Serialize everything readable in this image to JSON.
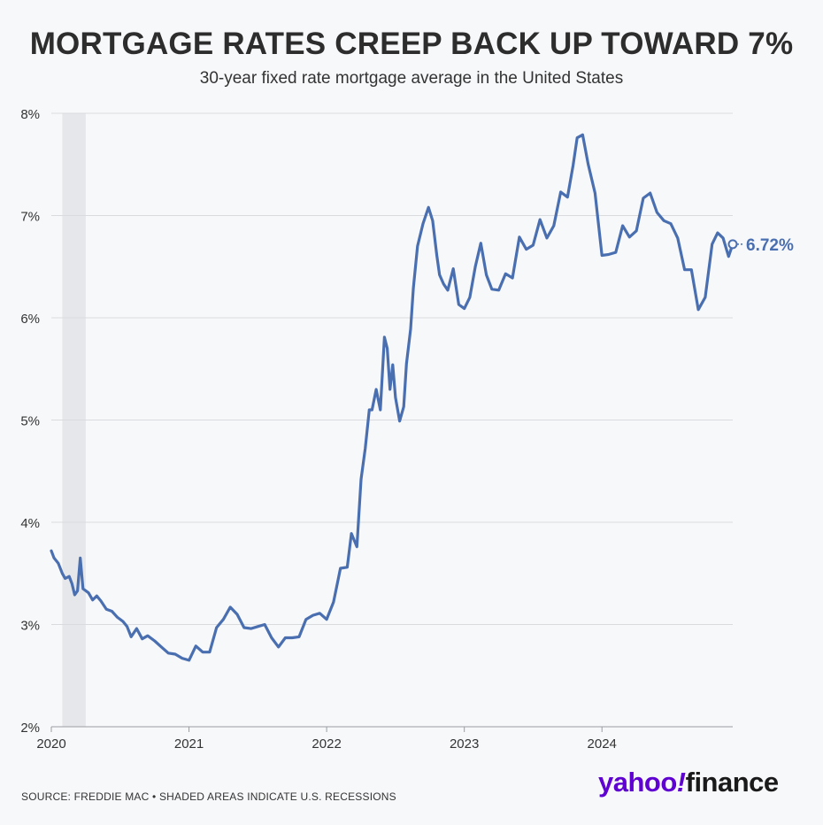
{
  "header": {
    "title": "MORTGAGE RATES CREEP BACK UP TOWARD 7%",
    "subtitle": "30-year fixed rate mortgage average in the United States"
  },
  "footer": {
    "source": "SOURCE: FREDDIE MAC • SHADED AREAS INDICATE U.S. RECESSIONS",
    "brand_yahoo": "yahoo",
    "brand_bang": "!",
    "brand_finance": "finance"
  },
  "colors": {
    "line": "#4a6fb0",
    "recession": "#e6e7ea",
    "grid": "#d9dbdf",
    "brand": "#5f01d1"
  },
  "chart_data": {
    "type": "line",
    "title": "MORTGAGE RATES CREEP BACK UP TOWARD 7%",
    "subtitle": "30-year fixed rate mortgage average in the United States",
    "xlabel": "",
    "ylabel": "",
    "xlim": [
      2020.0,
      2024.95
    ],
    "ylim": [
      2,
      8
    ],
    "y_ticks": [
      2,
      3,
      4,
      5,
      6,
      7,
      8
    ],
    "y_tick_labels": [
      "2%",
      "3%",
      "4%",
      "5%",
      "6%",
      "7%",
      "8%"
    ],
    "x_ticks": [
      2020,
      2021,
      2022,
      2023,
      2024
    ],
    "x_tick_labels": [
      "2020",
      "2021",
      "2022",
      "2023",
      "2024"
    ],
    "grid": true,
    "recessions": [
      {
        "start": 2020.08,
        "end": 2020.25
      }
    ],
    "last_value_label": "6.72%",
    "series": [
      {
        "x": [
          2020.0,
          2020.02,
          2020.05,
          2020.08,
          2020.1,
          2020.13,
          2020.15,
          2020.17,
          2020.19,
          2020.21,
          2020.23,
          2020.25,
          2020.27,
          2020.3,
          2020.33,
          2020.36,
          2020.4,
          2020.44,
          2020.48,
          2020.52,
          2020.55,
          2020.58,
          2020.62,
          2020.66,
          2020.7,
          2020.75,
          2020.8,
          2020.85,
          2020.9,
          2020.95,
          2021.0,
          2021.05,
          2021.1,
          2021.15,
          2021.2,
          2021.25,
          2021.3,
          2021.35,
          2021.4,
          2021.45,
          2021.5,
          2021.55,
          2021.6,
          2021.65,
          2021.7,
          2021.75,
          2021.8,
          2021.85,
          2021.9,
          2021.95,
          2022.0,
          2022.05,
          2022.1,
          2022.15,
          2022.18,
          2022.22,
          2022.25,
          2022.28,
          2022.31,
          2022.33,
          2022.36,
          2022.39,
          2022.42,
          2022.44,
          2022.46,
          2022.48,
          2022.5,
          2022.53,
          2022.56,
          2022.58,
          2022.61,
          2022.63,
          2022.66,
          2022.7,
          2022.74,
          2022.77,
          2022.8,
          2022.82,
          2022.85,
          2022.88,
          2022.92,
          2022.96,
          2023.0,
          2023.04,
          2023.08,
          2023.12,
          2023.16,
          2023.2,
          2023.25,
          2023.3,
          2023.35,
          2023.4,
          2023.45,
          2023.5,
          2023.55,
          2023.6,
          2023.65,
          2023.7,
          2023.75,
          2023.79,
          2023.82,
          2023.86,
          2023.9,
          2023.95,
          2024.0,
          2024.05,
          2024.1,
          2024.15,
          2024.2,
          2024.25,
          2024.3,
          2024.35,
          2024.4,
          2024.45,
          2024.5,
          2024.55,
          2024.6,
          2024.65,
          2024.7,
          2024.75,
          2024.8,
          2024.84,
          2024.88,
          2024.92,
          2024.95
        ],
        "values": [
          3.72,
          3.65,
          3.6,
          3.5,
          3.45,
          3.47,
          3.4,
          3.29,
          3.33,
          3.65,
          3.35,
          3.33,
          3.31,
          3.24,
          3.28,
          3.23,
          3.15,
          3.13,
          3.07,
          3.03,
          2.98,
          2.88,
          2.96,
          2.86,
          2.89,
          2.84,
          2.78,
          2.72,
          2.71,
          2.67,
          2.65,
          2.79,
          2.73,
          2.73,
          2.97,
          3.05,
          3.17,
          3.1,
          2.97,
          2.96,
          2.98,
          3.0,
          2.87,
          2.78,
          2.87,
          2.87,
          2.88,
          3.05,
          3.09,
          3.11,
          3.05,
          3.22,
          3.55,
          3.56,
          3.89,
          3.76,
          4.42,
          4.72,
          5.1,
          5.1,
          5.3,
          5.1,
          5.81,
          5.7,
          5.3,
          5.54,
          5.22,
          4.99,
          5.13,
          5.55,
          5.89,
          6.29,
          6.7,
          6.92,
          7.08,
          6.95,
          6.61,
          6.42,
          6.33,
          6.27,
          6.48,
          6.13,
          6.09,
          6.2,
          6.5,
          6.73,
          6.42,
          6.28,
          6.27,
          6.43,
          6.39,
          6.79,
          6.67,
          6.71,
          6.96,
          6.78,
          6.9,
          7.23,
          7.18,
          7.49,
          7.76,
          7.79,
          7.5,
          7.22,
          6.61,
          6.62,
          6.64,
          6.9,
          6.79,
          6.85,
          7.17,
          7.22,
          7.03,
          6.95,
          6.92,
          6.78,
          6.47,
          6.47,
          6.08,
          6.2,
          6.72,
          6.83,
          6.78,
          6.6,
          6.72
        ]
      }
    ]
  }
}
